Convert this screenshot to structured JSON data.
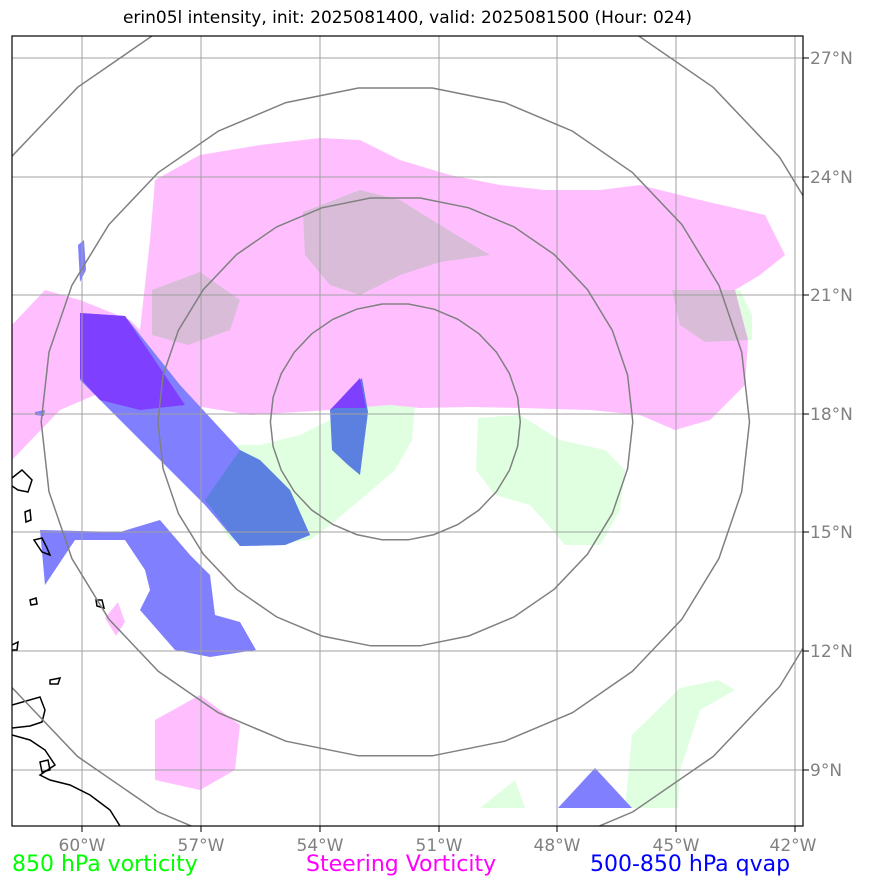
{
  "title": "erin05l intensity, init: 2025081400, valid: 2025081500 (Hour: 024)",
  "map": {
    "lon_range": [
      -62,
      -42
    ],
    "lat_range": [
      7.8,
      27.5
    ],
    "lon_ticks": [
      {
        "value": -60,
        "label": "60°W"
      },
      {
        "value": -57,
        "label": "57°W"
      },
      {
        "value": -54,
        "label": "54°W"
      },
      {
        "value": -51,
        "label": "51°W"
      },
      {
        "value": -48,
        "label": "48°W"
      },
      {
        "value": -45,
        "label": "45°W"
      },
      {
        "value": -42,
        "label": "42°W"
      }
    ],
    "lat_ticks": [
      {
        "value": 27,
        "label": "27°N"
      },
      {
        "value": 24,
        "label": "24°N"
      },
      {
        "value": 21,
        "label": "21°N"
      },
      {
        "value": 18,
        "label": "18°N"
      },
      {
        "value": 15,
        "label": "15°N"
      },
      {
        "value": 12,
        "label": "12°N"
      },
      {
        "value": 9,
        "label": "9°N"
      }
    ],
    "storm_center": {
      "lon": -52.1,
      "lat": 17.8
    },
    "range_rings_deg": [
      3.0,
      5.7,
      8.5,
      11.4
    ],
    "colors": {
      "v850": "#00ff00",
      "steering": "#ff00ff",
      "qvap": "#0000ff",
      "overlap": "#d8bcd8",
      "grid": "#a0a0a0",
      "rings": "#808080"
    }
  },
  "legend": {
    "v850": {
      "label": "850 hPa vorticity",
      "color": "#00ff00"
    },
    "steering": {
      "label": "Steering Vorticity",
      "color": "#ff00ff"
    },
    "qvap": {
      "label": "500-850 hPa qvap",
      "color": "#0000ff"
    }
  }
}
